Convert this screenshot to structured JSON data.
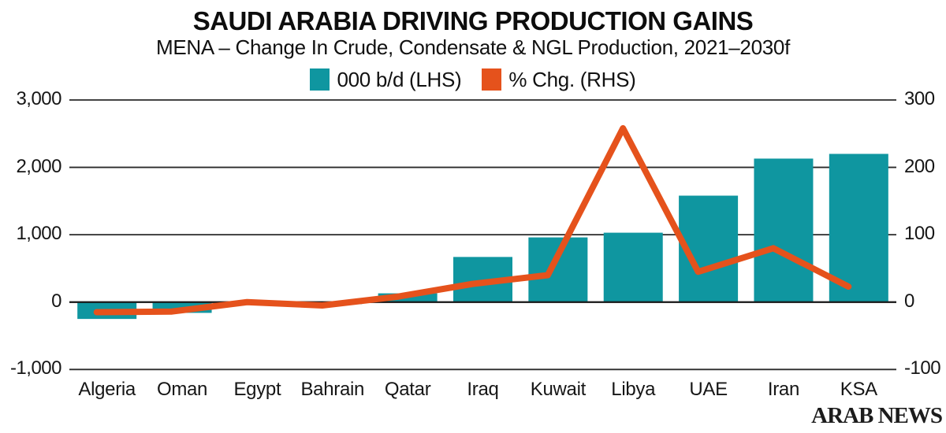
{
  "header": {
    "title": "SAUDI ARABIA DRIVING PRODUCTION GAINS",
    "subtitle": "MENA – Change In Crude, Condensate & NGL Production, 2021–2030f"
  },
  "legend": [
    {
      "label": "000 b/d (LHS)",
      "color": "#0F96A0",
      "marker": "square"
    },
    {
      "label": "% Chg. (RHS)",
      "color": "#E5521C",
      "marker": "square"
    }
  ],
  "chart_data": {
    "type": "combo",
    "title": "SAUDI ARABIA DRIVING PRODUCTION GAINS",
    "subtitle": "MENA – Change In Crude, Condensate & NGL Production, 2021–2030f",
    "categories": [
      "Algeria",
      "Oman",
      "Egypt",
      "Bahrain",
      "Qatar",
      "Iraq",
      "Kuwait",
      "Libya",
      "UAE",
      "Iran",
      "KSA"
    ],
    "series": [
      {
        "name": "000 b/d (LHS)",
        "type": "bar",
        "axis": "left",
        "color": "#0F96A0",
        "values": [
          -250,
          -160,
          -30,
          -30,
          130,
          670,
          960,
          1030,
          1580,
          2130,
          2200
        ]
      },
      {
        "name": "% Chg. (RHS)",
        "type": "line",
        "axis": "right",
        "color": "#E5521C",
        "values": [
          -15,
          -14,
          0,
          -5,
          8,
          27,
          40,
          258,
          45,
          80,
          23
        ]
      }
    ],
    "axis_left": {
      "range": [
        -1000,
        3000
      ],
      "tick_values": [
        3000,
        2000,
        1000,
        0,
        -1000
      ],
      "tick_labels": [
        "3,000",
        "2,000",
        "1,000",
        "0",
        "-1,000"
      ]
    },
    "axis_right": {
      "range": [
        -100,
        300
      ],
      "tick_values": [
        300,
        200,
        100,
        0,
        -100
      ],
      "tick_labels": [
        "300",
        "200",
        "100",
        "0",
        "-100"
      ]
    },
    "grid": true,
    "grid_color": "#2a2a2a",
    "legend_position": "top"
  },
  "footer": {
    "brand": "ARAB NEWS"
  }
}
